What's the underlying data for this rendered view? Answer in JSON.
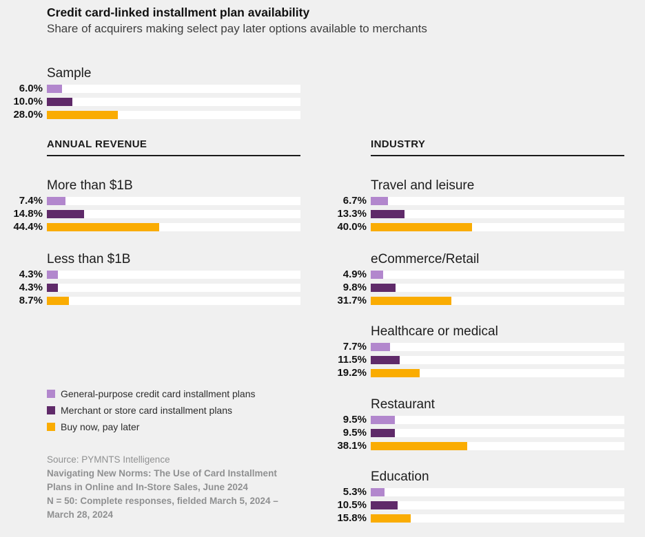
{
  "header": {
    "title": "Credit card-linked installment plan availability",
    "subtitle": "Share of acquirers making select pay later options available to merchants"
  },
  "sections": {
    "annual_revenue": "ANNUAL REVENUE",
    "industry": "INDUSTRY"
  },
  "colors": {
    "general_purpose": "#b287cd",
    "merchant_store": "#5f2a69",
    "bnpl": "#faac02",
    "track": "#ffffff",
    "background": "#f0f0f0"
  },
  "legend": [
    {
      "swatch": "general-purpose-swatch",
      "label": "General-purpose credit card installment plans"
    },
    {
      "swatch": "merchant-store-swatch",
      "label": "Merchant or store card installment plans"
    },
    {
      "swatch": "bnpl-swatch",
      "label": "Buy now, pay later"
    }
  ],
  "source": {
    "attribution": "Source: PYMNTS Intelligence",
    "report_title": "Navigating New Norms: The Use of Card Installment Plans in Online and In-Store Sales, June 2024",
    "sample_note": "N = 50: Complete responses, fielded March 5, 2024 – March 28, 2024"
  },
  "chart_data": {
    "type": "bar",
    "orientation": "horizontal",
    "title": "Credit card-linked installment plan availability",
    "subtitle": "Share of acquirers making select pay later options available to merchants",
    "unit": "%",
    "xlim": [
      0,
      100
    ],
    "grid": false,
    "legend_position": "bottom-left",
    "series_names": [
      "General-purpose credit card installment plans",
      "Merchant or store card installment plans",
      "Buy now, pay later"
    ],
    "groups": [
      {
        "section": "Sample",
        "label": "Sample",
        "values": [
          6.0,
          10.0,
          28.0
        ],
        "value_labels": [
          "6.0%",
          "10.0%",
          "28.0%"
        ]
      },
      {
        "section": "ANNUAL REVENUE",
        "label": "More than $1B",
        "values": [
          7.4,
          14.8,
          44.4
        ],
        "value_labels": [
          "7.4%",
          "14.8%",
          "44.4%"
        ]
      },
      {
        "section": "ANNUAL REVENUE",
        "label": "Less than $1B",
        "values": [
          4.3,
          4.3,
          8.7
        ],
        "value_labels": [
          "4.3%",
          "4.3%",
          "8.7%"
        ]
      },
      {
        "section": "INDUSTRY",
        "label": "Travel and leisure",
        "values": [
          6.7,
          13.3,
          40.0
        ],
        "value_labels": [
          "6.7%",
          "13.3%",
          "40.0%"
        ]
      },
      {
        "section": "INDUSTRY",
        "label": "eCommerce/Retail",
        "values": [
          4.9,
          9.8,
          31.7
        ],
        "value_labels": [
          "4.9%",
          "9.8%",
          "31.7%"
        ]
      },
      {
        "section": "INDUSTRY",
        "label": "Healthcare or medical",
        "values": [
          7.7,
          11.5,
          19.2
        ],
        "value_labels": [
          "7.7%",
          "11.5%",
          "19.2%"
        ]
      },
      {
        "section": "INDUSTRY",
        "label": "Restaurant",
        "values": [
          9.5,
          9.5,
          38.1
        ],
        "value_labels": [
          "9.5%",
          "9.5%",
          "38.1%"
        ]
      },
      {
        "section": "INDUSTRY",
        "label": "Education",
        "values": [
          5.3,
          10.5,
          15.8
        ],
        "value_labels": [
          "5.3%",
          "10.5%",
          "15.8%"
        ]
      }
    ]
  }
}
